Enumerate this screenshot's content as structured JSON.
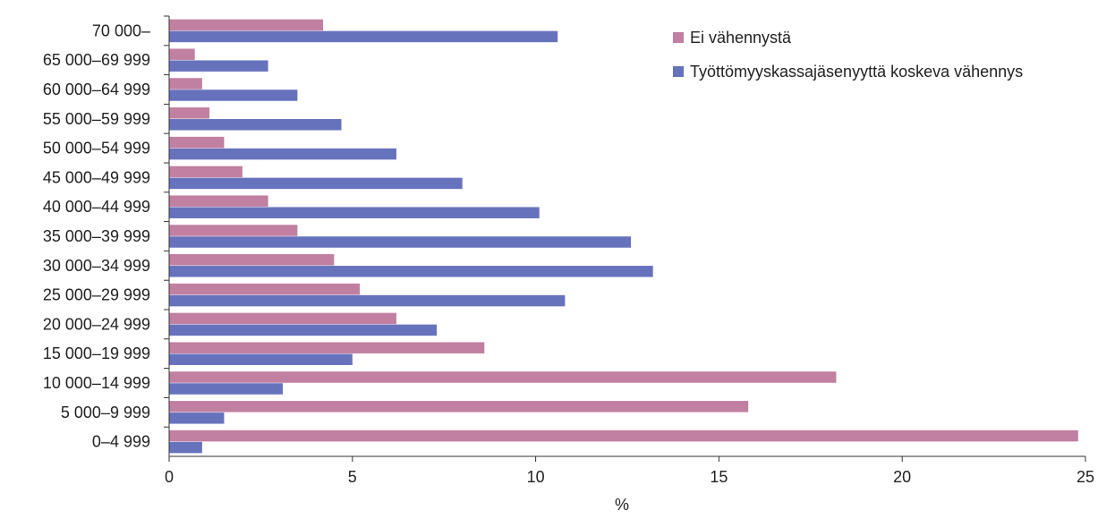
{
  "chart_data": {
    "type": "bar",
    "orientation": "horizontal",
    "categories": [
      "0–4 999",
      "5 000–9 999",
      "10 000–14 999",
      "15 000–19 999",
      "20 000–24 999",
      "25 000–29 999",
      "30 000–34 999",
      "35 000–39 999",
      "40 000–44 999",
      "45 000–49 999",
      "50 000–54 999",
      "55 000–59 999",
      "60 000–64 999",
      "65 000–69 999",
      "70 000–"
    ],
    "series": [
      {
        "name": "Ei vähennystä",
        "color": "#c17fa1",
        "values": [
          24.8,
          15.8,
          18.2,
          8.6,
          6.2,
          5.2,
          4.5,
          3.5,
          2.7,
          2.0,
          1.5,
          1.1,
          0.9,
          0.7,
          4.2
        ]
      },
      {
        "name": "Työttömyyskassajäsenyyttä koskeva vähennys",
        "color": "#6772bd",
        "values": [
          0.9,
          1.5,
          3.1,
          5.0,
          7.3,
          10.8,
          13.2,
          12.6,
          10.1,
          8.0,
          6.2,
          4.7,
          3.5,
          2.7,
          10.6
        ]
      }
    ],
    "xlabel": "%",
    "ylabel": "",
    "xlim": [
      0,
      25
    ],
    "xticks": [
      "0",
      "5",
      "10",
      "15",
      "20",
      "25"
    ],
    "grid": false,
    "legend_position": "top-right"
  }
}
